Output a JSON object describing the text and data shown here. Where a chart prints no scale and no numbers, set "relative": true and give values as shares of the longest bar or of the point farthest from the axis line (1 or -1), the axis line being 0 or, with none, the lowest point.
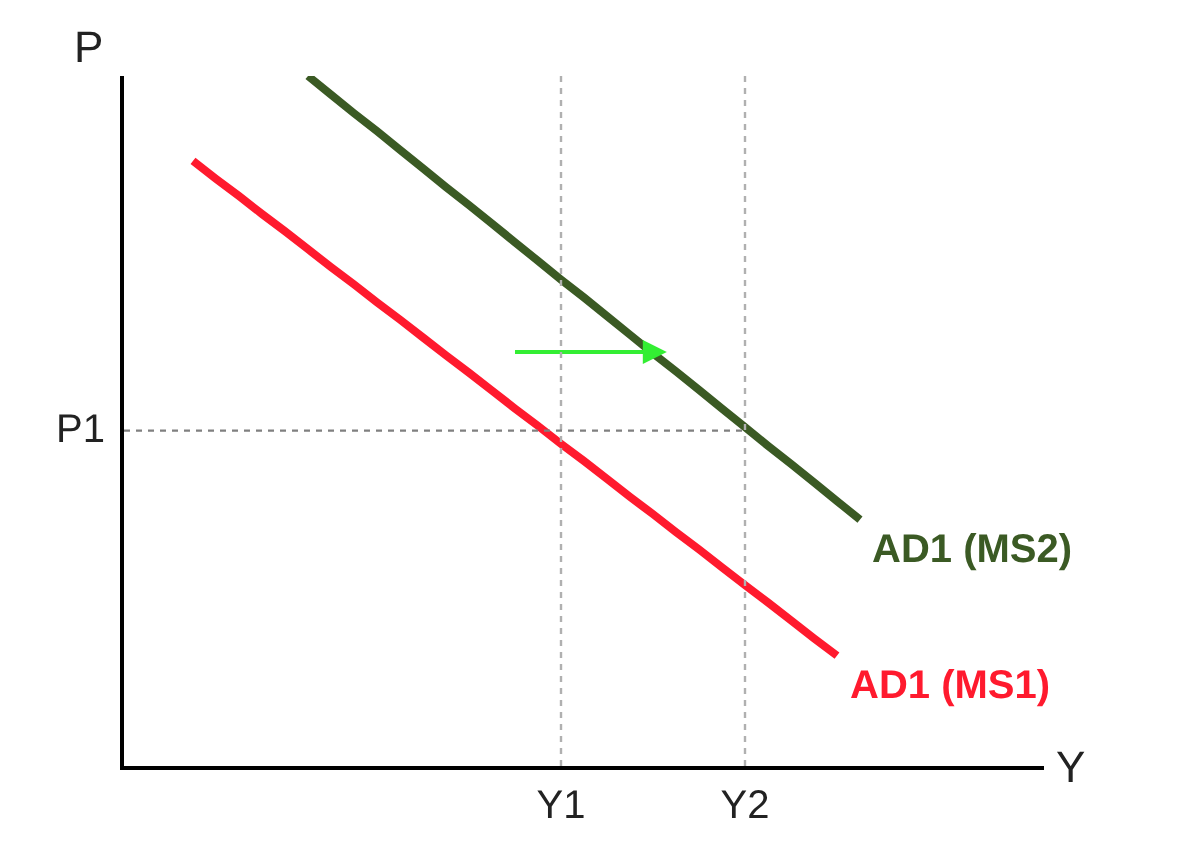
{
  "chart_data": {
    "type": "line",
    "relative": true,
    "xlabel": "Y",
    "ylabel": "P",
    "legend": false,
    "marker": "none",
    "line_style": "solid",
    "categories": [
      null,
      null,
      null,
      null,
      null,
      null,
      null,
      null,
      null,
      null,
      null,
      null,
      null,
      null,
      null,
      null,
      null,
      null,
      null,
      "Y1",
      null,
      null,
      null,
      null,
      null,
      null,
      null,
      "Y2",
      null,
      null,
      null,
      null,
      null,
      null,
      null,
      null,
      null,
      null,
      null,
      null,
      null
    ],
    "series": [
      {
        "name": "AD1 (MS2)",
        "color": "#3b5a24",
        "values": [
          null,
          null,
          null,
          null,
          null,
          null,
          null,
          null,
          1.0,
          0.973,
          0.946,
          0.92,
          0.893,
          0.866,
          0.839,
          0.813,
          0.786,
          0.759,
          0.732,
          0.705,
          0.679,
          0.652,
          0.625,
          0.598,
          0.572,
          0.545,
          0.518,
          0.491,
          0.464,
          0.438,
          0.411,
          0.384,
          0.357,
          null,
          null,
          null,
          null,
          null,
          null,
          null,
          null
        ]
      },
      {
        "color": "#33ee33",
        "values": [
          null,
          null,
          null,
          null,
          null,
          null,
          null,
          null,
          null,
          null,
          null,
          null,
          null,
          null,
          null,
          null,
          null,
          0.6,
          0.6,
          0.6,
          0.6,
          0.6,
          0.6,
          0.6,
          null,
          null,
          null,
          null,
          null,
          null,
          null,
          null,
          null,
          null,
          null,
          null,
          null,
          null,
          null,
          null,
          null
        ]
      },
      {
        "name": "AD1 (MS1)",
        "color": "#ff1a2e",
        "values": [
          null,
          null,
          null,
          0.877,
          0.851,
          0.826,
          0.8,
          0.775,
          0.749,
          0.723,
          0.698,
          0.672,
          0.647,
          0.621,
          0.595,
          0.57,
          0.544,
          0.518,
          0.493,
          0.467,
          0.442,
          0.416,
          0.39,
          0.365,
          0.339,
          0.314,
          0.288,
          0.262,
          0.237,
          0.211,
          0.185,
          0.16,
          null,
          null,
          null,
          null,
          null,
          null,
          null,
          null,
          null
        ]
      }
    ],
    "ref_lines": [
      {
        "axis": "x",
        "value": "Y1",
        "color": "#b0b0b0",
        "line_style": "dotted"
      },
      {
        "axis": "x",
        "value": "Y2",
        "color": "#b0b0b0",
        "line_style": "dotted"
      },
      {
        "axis": "y",
        "value": 0.486,
        "label": "P1",
        "color": "#808080",
        "line_style": "dotted"
      }
    ]
  }
}
